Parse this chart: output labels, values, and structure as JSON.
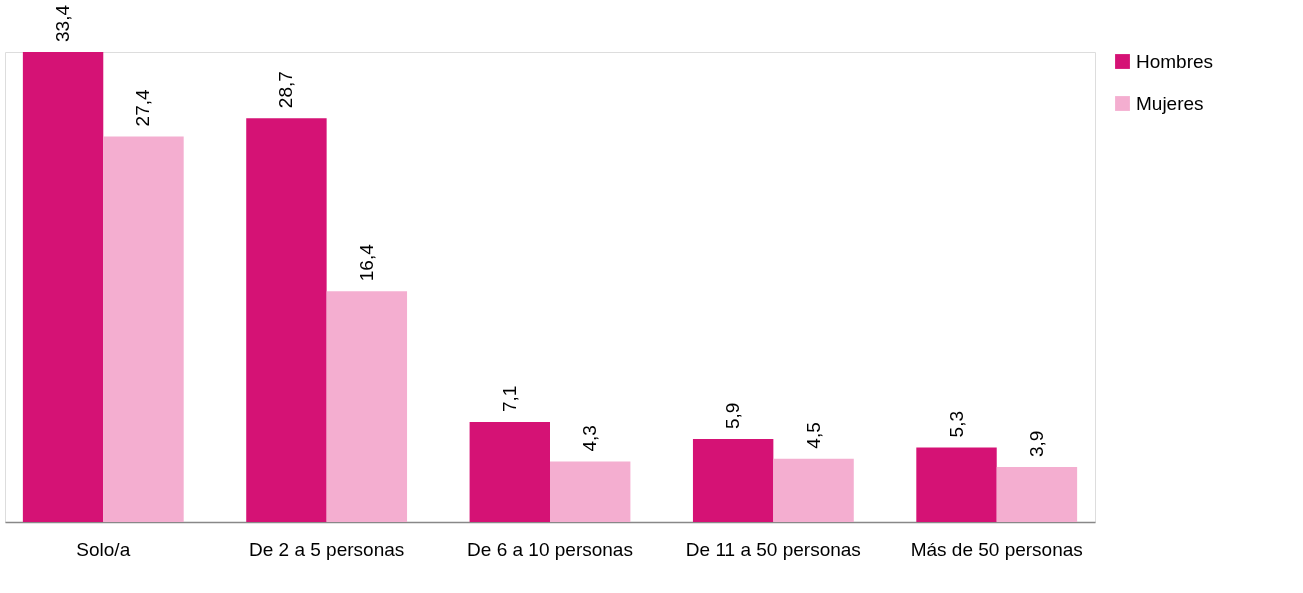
{
  "chart_data": {
    "type": "bar",
    "categories": [
      "Solo/a",
      "De 2 a 5 personas",
      "De 6 a 10 personas",
      "De 11 a 50 personas",
      "Más de 50 personas"
    ],
    "series": [
      {
        "name": "Hombres",
        "color": "#d51275",
        "values": [
          33.4,
          28.7,
          7.1,
          5.9,
          5.3
        ],
        "value_labels": [
          "33,4",
          "28,7",
          "7,1",
          "5,9",
          "5,3"
        ]
      },
      {
        "name": "Mujeres",
        "color": "#f4aed0",
        "values": [
          27.4,
          16.4,
          4.3,
          4.5,
          3.9
        ],
        "value_labels": [
          "27,4",
          "16,4",
          "4,3",
          "4,5",
          "3,9"
        ]
      }
    ],
    "legend": "right",
    "grid": false,
    "tick_labels": "x"
  }
}
